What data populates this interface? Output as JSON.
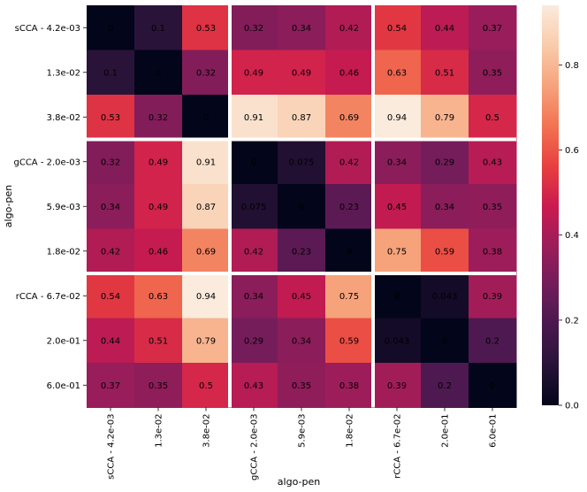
{
  "chart_data": {
    "type": "heatmap",
    "xlabel": "algo-pen",
    "ylabel": "algo-pen",
    "categories": [
      "sCCA - 4.2e-03",
      "1.3e-02",
      "3.8e-02",
      "gCCA - 2.0e-03",
      "5.9e-03",
      "1.8e-02",
      "rCCA - 6.7e-02",
      "2.0e-01",
      "6.0e-01"
    ],
    "cell_labels": [
      [
        "0",
        "0.1",
        "0.53",
        "0.32",
        "0.34",
        "0.42",
        "0.54",
        "0.44",
        "0.37"
      ],
      [
        "0.1",
        "0",
        "0.32",
        "0.49",
        "0.49",
        "0.46",
        "0.63",
        "0.51",
        "0.35"
      ],
      [
        "0.53",
        "0.32",
        "0",
        "0.91",
        "0.87",
        "0.69",
        "0.94",
        "0.79",
        "0.5"
      ],
      [
        "0.32",
        "0.49",
        "0.91",
        "0",
        "0.075",
        "0.42",
        "0.34",
        "0.29",
        "0.43"
      ],
      [
        "0.34",
        "0.49",
        "0.87",
        "0.075",
        "0",
        "0.23",
        "0.45",
        "0.34",
        "0.35"
      ],
      [
        "0.42",
        "0.46",
        "0.69",
        "0.42",
        "0.23",
        "0",
        "0.75",
        "0.59",
        "0.38"
      ],
      [
        "0.54",
        "0.63",
        "0.94",
        "0.34",
        "0.45",
        "0.75",
        "0",
        "0.043",
        "0.39"
      ],
      [
        "0.44",
        "0.51",
        "0.79",
        "0.29",
        "0.34",
        "0.59",
        "0.043",
        "0",
        "0.2"
      ],
      [
        "0.37",
        "0.35",
        "0.5",
        "0.43",
        "0.35",
        "0.38",
        "0.39",
        "0.2",
        "0"
      ]
    ],
    "colorbar": {
      "min": 0,
      "max": 0.94,
      "ticks": [
        "0.0",
        "0.2",
        "0.4",
        "0.6",
        "0.8"
      ]
    },
    "colormap": "rocket",
    "group_size": 3,
    "group_separator_color": "#ffffff",
    "grid": false,
    "legend": "colorbar-right"
  }
}
